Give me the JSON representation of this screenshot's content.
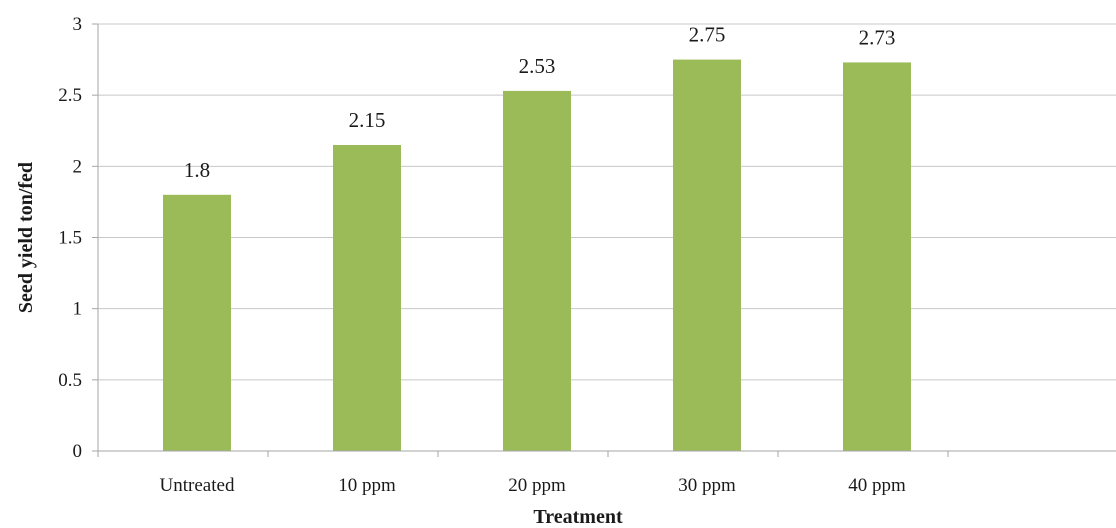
{
  "chart_data": {
    "type": "bar",
    "categories": [
      "Untreated",
      "10 ppm",
      "20 ppm",
      "30 ppm",
      "40 ppm"
    ],
    "values": [
      1.8,
      2.15,
      2.53,
      2.75,
      2.73
    ],
    "value_labels": [
      "1.8",
      "2.15",
      "2.53",
      "2.75",
      "2.73"
    ],
    "xlabel": "Treatment",
    "ylabel": "Seed yield ton/fed",
    "ylim": [
      0,
      3
    ],
    "yticks": [
      0,
      0.5,
      1,
      1.5,
      2,
      2.5,
      3
    ],
    "ytick_labels": [
      "0",
      "0.5",
      "1",
      "1.5",
      "2",
      "2.5",
      "3"
    ],
    "grid": "horizontal",
    "legend": "none",
    "bar_color": "#9bbb59"
  }
}
